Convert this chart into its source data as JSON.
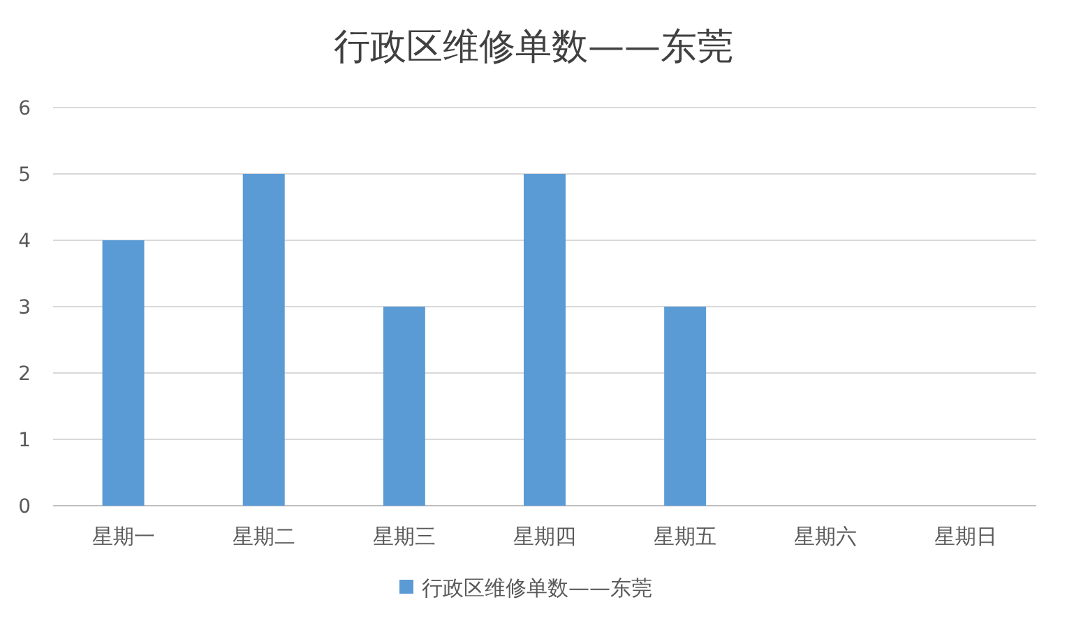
{
  "chart_data": {
    "type": "bar",
    "title": "行政区维修单数——东莞",
    "categories": [
      "星期一",
      "星期二",
      "星期三",
      "星期四",
      "星期五",
      "星期六",
      "星期日"
    ],
    "series": [
      {
        "name": "行政区维修单数——东莞",
        "color": "#5b9bd5",
        "values": [
          4,
          5,
          3,
          5,
          3,
          0,
          0
        ]
      }
    ],
    "ylim": [
      0,
      6
    ],
    "yticks": [
      0,
      1,
      2,
      3,
      4,
      5,
      6
    ],
    "grid": "y",
    "legend": "bottom"
  }
}
